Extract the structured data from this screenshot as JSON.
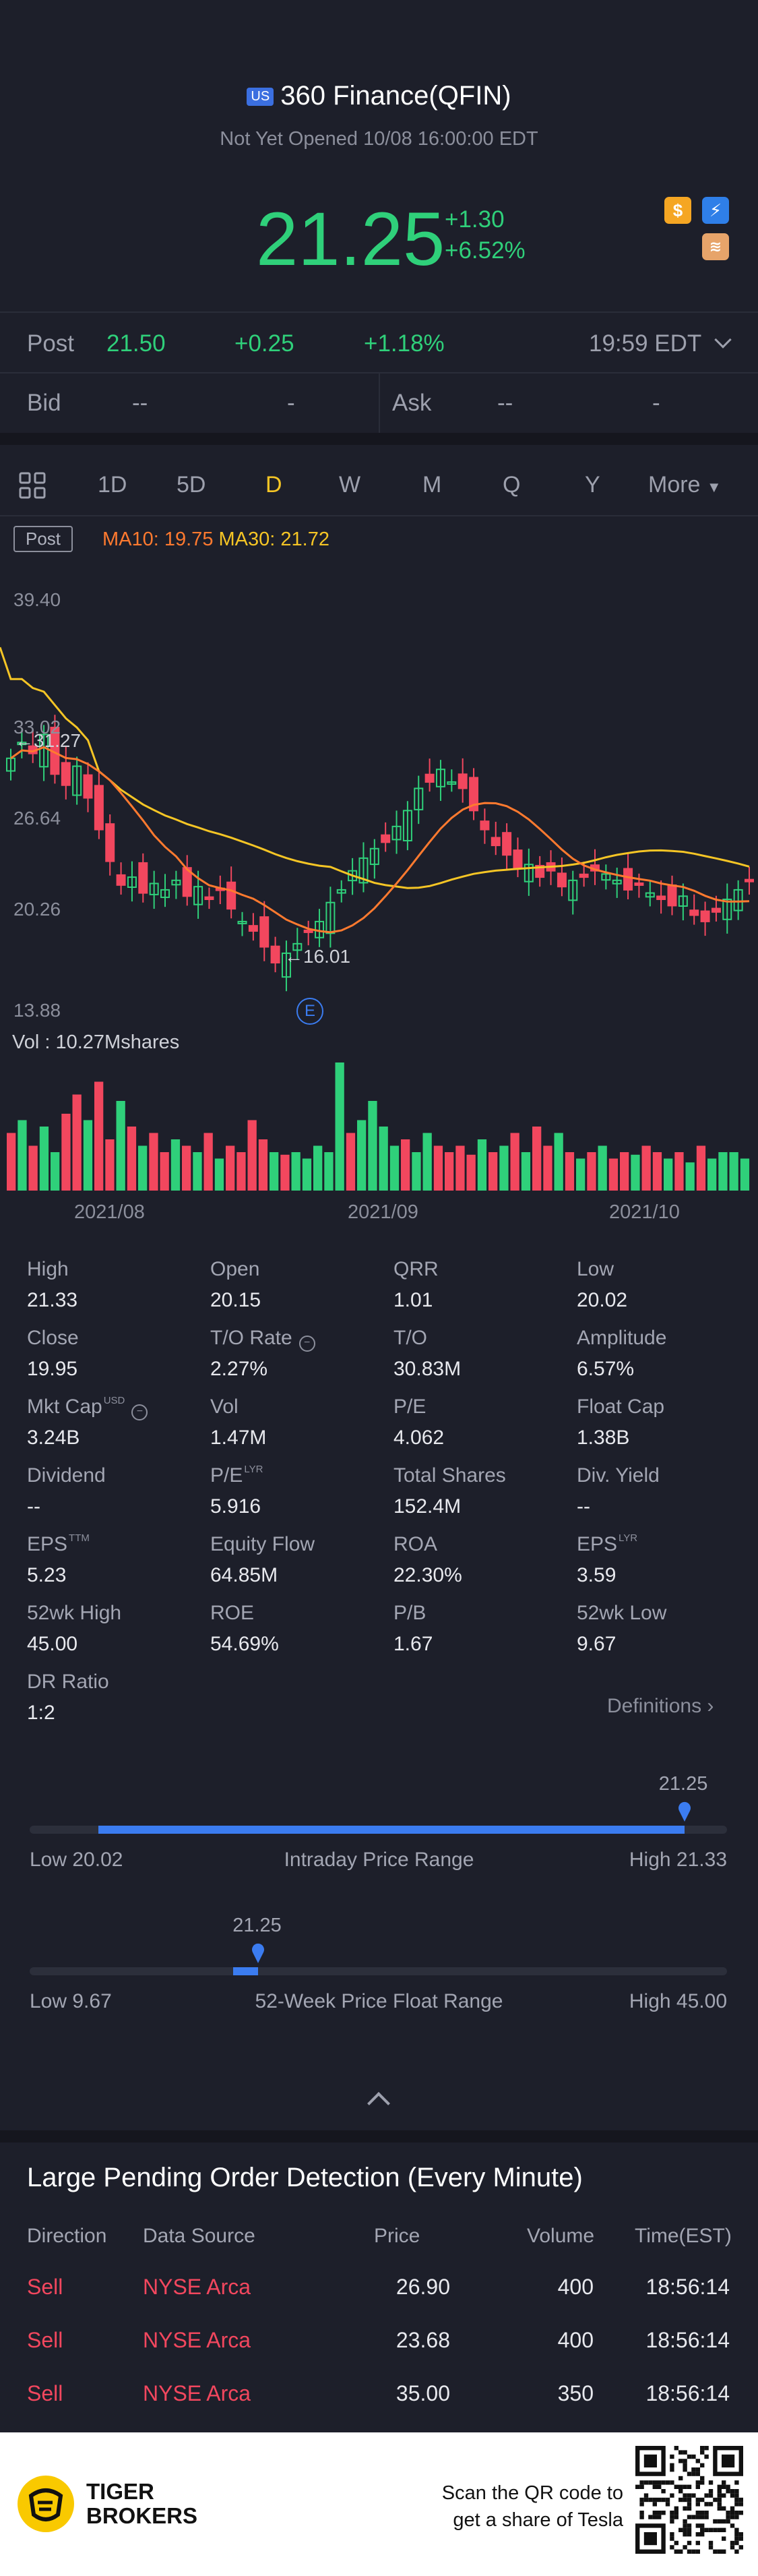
{
  "header": {
    "market_badge": "US",
    "title": "360 Finance(QFIN)",
    "status": "Not Yet Opened 10/08 16:00:00 EDT",
    "price": "21.25",
    "change": "+1.30",
    "change_pct": "+6.52%",
    "icons": [
      "dollar-icon",
      "lightning-icon",
      "coin-stack-icon"
    ]
  },
  "post": {
    "label": "Post",
    "price": "21.50",
    "change": "+0.25",
    "change_pct": "+1.18%",
    "time": "19:59 EDT"
  },
  "bidask": {
    "bid_label": "Bid",
    "bid_val": "--",
    "bid_size": "-",
    "ask_label": "Ask",
    "ask_val": "--",
    "ask_size": "-"
  },
  "tabs": [
    "1D",
    "5D",
    "D",
    "W",
    "M",
    "Q",
    "Y",
    "More"
  ],
  "active_tab": "D",
  "chart": {
    "badge": "Post",
    "ma10": "MA10: 19.75",
    "ma30": "MA30: 21.72",
    "y_ticks": [
      "39.40",
      "33.02",
      "26.64",
      "20.26",
      "13.88"
    ],
    "high_marker": "31.27",
    "low_marker": "16.01",
    "event_marker": "E",
    "vol_label": "Vol  : 10.27Mshares",
    "x_ticks": [
      "2021/08",
      "2021/09",
      "2021/10"
    ],
    "colors": {
      "up": "#2fd07a",
      "down": "#f2475e",
      "ma10": "#ff7a2f",
      "ma30": "#f5c525"
    }
  },
  "chart_data": {
    "type": "candlestick",
    "ylim": [
      13.88,
      39.4
    ],
    "ma10_label": "MA10: 19.75",
    "ma30_label": "MA30: 21.72",
    "high": 31.27,
    "low": 16.01,
    "x_ticks": [
      "2021/08",
      "2021/09",
      "2021/10"
    ],
    "volume_label": "Vol  : 10.27Mshares"
  },
  "stats": [
    {
      "label": "High",
      "value": "21.33"
    },
    {
      "label": "Open",
      "value": "20.15"
    },
    {
      "label": "QRR",
      "value": "1.01"
    },
    {
      "label": "Low",
      "value": "20.02"
    },
    {
      "label": "Close",
      "value": "19.95"
    },
    {
      "label": "T/O Rate",
      "value": "2.27%"
    },
    {
      "label": "T/O",
      "value": "30.83M"
    },
    {
      "label": "Amplitude",
      "value": "6.57%"
    },
    {
      "label": "Mkt Cap",
      "value": "3.24B",
      "sup": "USD"
    },
    {
      "label": "Vol",
      "value": "1.47M"
    },
    {
      "label": "P/E",
      "value": "4.062"
    },
    {
      "label": "Float Cap",
      "value": "1.38B"
    },
    {
      "label": "Dividend",
      "value": "--"
    },
    {
      "label": "P/E",
      "value": "5.916",
      "sup": "LYR"
    },
    {
      "label": "Total Shares",
      "value": "152.4M"
    },
    {
      "label": "Div. Yield",
      "value": "--"
    },
    {
      "label": "EPS",
      "value": "5.23",
      "sup": "TTM"
    },
    {
      "label": "Equity Flow",
      "value": "64.85M"
    },
    {
      "label": "ROA",
      "value": "22.30%"
    },
    {
      "label": "EPS",
      "value": "3.59",
      "sup": "LYR"
    },
    {
      "label": "52wk High",
      "value": "45.00"
    },
    {
      "label": "ROE",
      "value": "54.69%"
    },
    {
      "label": "P/B",
      "value": "1.67"
    },
    {
      "label": "52wk Low",
      "value": "9.67"
    },
    {
      "label": "DR Ratio",
      "value": "1:2"
    }
  ],
  "definitions": "Definitions",
  "intraday": {
    "marker": "21.25",
    "low": "Low 20.02",
    "title": "Intraday Price Range",
    "high": "High 21.33",
    "low_val": 20.02,
    "high_val": 21.33,
    "current": 21.25
  },
  "week52": {
    "marker": "21.25",
    "low": "Low 9.67",
    "title": "52-Week Price Float Range",
    "high": "High 45.00",
    "low_val": 9.67,
    "high_val": 45.0,
    "current": 21.25
  },
  "large_orders": {
    "title": "Large Pending Order Detection (Every Minute)",
    "headers": [
      "Direction",
      "Data Source",
      "Price",
      "Volume",
      "Time(EST)"
    ],
    "rows": [
      [
        "Sell",
        "NYSE Arca",
        "26.90",
        "400",
        "18:56:14"
      ],
      [
        "Sell",
        "NYSE Arca",
        "23.68",
        "400",
        "18:56:14"
      ],
      [
        "Sell",
        "NYSE Arca",
        "35.00",
        "350",
        "18:56:14"
      ]
    ]
  },
  "footer": {
    "brand_line1": "TIGER",
    "brand_line2": "BROKERS",
    "promo_line1": "Scan the QR code to",
    "promo_line2": "get a share of Tesla"
  }
}
